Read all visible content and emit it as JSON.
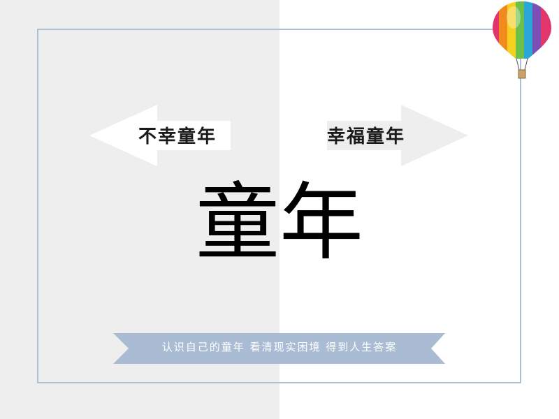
{
  "slide": {
    "main_title": "童年",
    "left_arrow_label": "不幸童年",
    "right_arrow_label": "幸福童年",
    "ribbon_text": "认识自己的童年 看清现实困境 得到人生答案"
  },
  "colors": {
    "left_background": "#eeeeef",
    "frame_border": "#aebfd4",
    "left_arrow_fill": "#ffffff",
    "right_arrow_fill": "#eeeeef",
    "ribbon_fill": "#a9bcd3",
    "ribbon_text": "#ffffff"
  },
  "icons": {
    "balloon": "hot-air-balloon-icon"
  }
}
